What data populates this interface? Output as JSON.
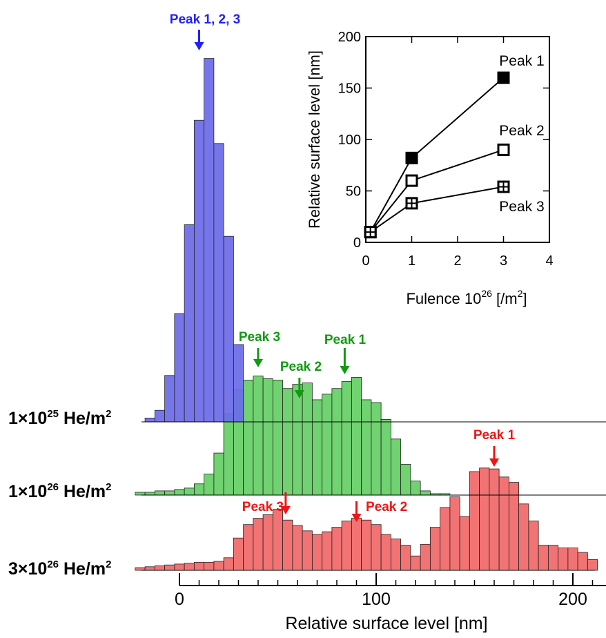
{
  "colors": {
    "blue": "#2020ff",
    "blue_fill": "#6a6ae8",
    "green": "#109a10",
    "green_fill": "#5ccc5c",
    "red": "#f01414",
    "red_fill": "#f06060",
    "ink": "#000000"
  },
  "main_chart": {
    "type": "bar",
    "xlabel": "Relative surface level    [nm]",
    "xlim": [
      -20,
      215
    ],
    "xticks": [
      0,
      100,
      200
    ],
    "bin_width_nm": 5,
    "series": [
      {
        "key": "blue",
        "label_main": "1×10",
        "label_sup": "25",
        "label_tail": " He/m",
        "label_sup2": "2",
        "x": [
          -15,
          -10,
          -5,
          0,
          5,
          10,
          15,
          20,
          25,
          30
        ],
        "values": [
          1,
          3,
          12,
          28,
          51,
          78,
          94,
          72,
          48,
          20
        ]
      },
      {
        "key": "green",
        "label_main": "1×10",
        "label_sup": "26",
        "label_tail": " He/m",
        "label_sup2": "2",
        "x": [
          -20,
          -15,
          -10,
          -5,
          0,
          5,
          10,
          15,
          20,
          25,
          30,
          35,
          40,
          45,
          50,
          55,
          60,
          65,
          70,
          75,
          80,
          85,
          90,
          95,
          100,
          105,
          110,
          115,
          120,
          125,
          130,
          135,
          140,
          145,
          150,
          155,
          160,
          165,
          170,
          175,
          180,
          185,
          190,
          195,
          200,
          205,
          210
        ],
        "values": [
          2,
          2,
          3,
          3,
          4,
          5,
          8,
          15,
          30,
          58,
          75,
          82,
          85,
          83,
          82,
          76,
          79,
          80,
          68,
          72,
          76,
          81,
          84,
          68,
          66,
          54,
          40,
          22,
          10,
          3,
          1,
          1,
          0,
          0,
          0,
          0,
          0,
          0,
          0,
          0,
          0,
          0,
          0,
          0,
          0,
          0,
          0
        ]
      },
      {
        "key": "red",
        "label_main": "3×10",
        "label_sup": "26",
        "label_tail": " He/m",
        "label_sup2": "2",
        "x": [
          -20,
          -15,
          -10,
          -5,
          0,
          5,
          10,
          15,
          20,
          25,
          30,
          35,
          40,
          45,
          50,
          55,
          60,
          65,
          70,
          75,
          80,
          85,
          90,
          95,
          100,
          105,
          110,
          115,
          120,
          125,
          130,
          135,
          140,
          145,
          150,
          155,
          160,
          165,
          170,
          175,
          180,
          185,
          190,
          195,
          200,
          205,
          210
        ],
        "values": [
          3,
          4,
          5,
          6,
          7,
          8,
          9,
          9,
          10,
          14,
          36,
          51,
          58,
          62,
          68,
          56,
          50,
          44,
          40,
          43,
          48,
          55,
          58,
          56,
          51,
          40,
          35,
          28,
          16,
          29,
          48,
          70,
          82,
          60,
          110,
          114,
          113,
          104,
          98,
          74,
          55,
          28,
          28,
          25,
          25,
          20,
          12
        ]
      }
    ]
  },
  "annotations": {
    "blue": [
      {
        "text": "Peak 1, 2, 3",
        "x": 10
      }
    ],
    "green": [
      {
        "text": "Peak 3",
        "x": 40
      },
      {
        "text": "Peak 2",
        "x": 61
      },
      {
        "text": "Peak 1",
        "x": 84
      }
    ],
    "red": [
      {
        "text": "Peak 1",
        "x": 160
      },
      {
        "text": "Peak 3",
        "x": 54
      },
      {
        "text": "Peak 2",
        "x": 90
      }
    ]
  },
  "chart_data": {
    "type": "line",
    "xlabel_main": "Fulence  10",
    "xlabel_sup": "26",
    "xlabel_tail": " [/m",
    "xlabel_sup2": "2",
    "xlabel_close": "]",
    "ylabel": "Relative surface level   [nm]",
    "xlim": [
      0,
      4
    ],
    "ylim": [
      0,
      200
    ],
    "xticks": [
      0,
      1,
      2,
      3,
      4
    ],
    "yticks": [
      0,
      50,
      100,
      150,
      200
    ],
    "series": [
      {
        "name": "Peak 1",
        "marker": "filled-square",
        "x": [
          0.1,
          1,
          3
        ],
        "y": [
          10,
          82,
          160
        ]
      },
      {
        "name": "Peak 2",
        "marker": "open-square",
        "x": [
          0.1,
          1,
          3
        ],
        "y": [
          10,
          60,
          90
        ]
      },
      {
        "name": "Peak 3",
        "marker": "crossed-square",
        "x": [
          0.1,
          1,
          3
        ],
        "y": [
          10,
          38,
          54
        ]
      }
    ]
  }
}
